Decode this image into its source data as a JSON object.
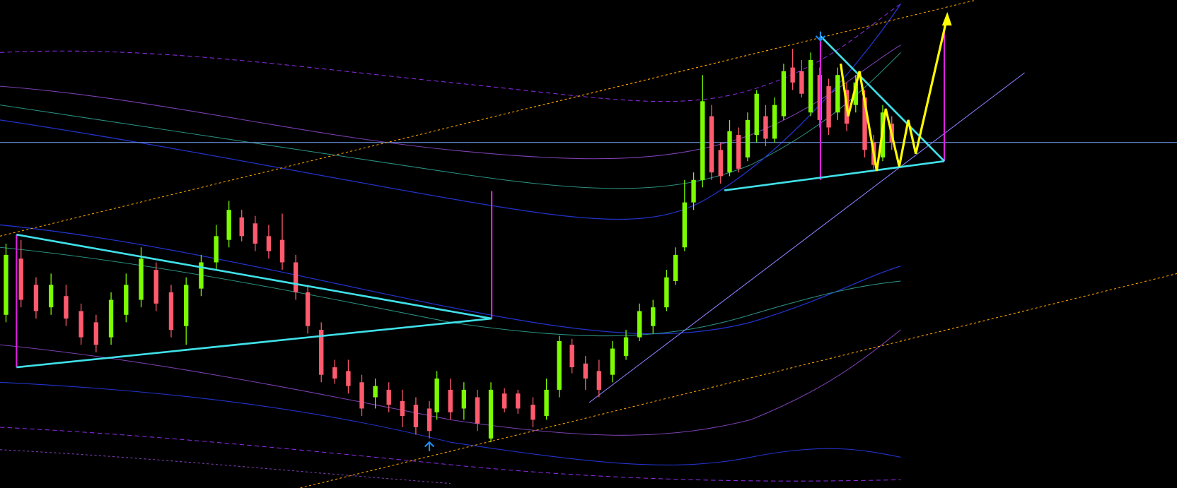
{
  "chart_data": {
    "type": "candlestick",
    "background": "#000000",
    "up_color": "#7cfc00",
    "down_color": "#ff5a6e"
  }
}
